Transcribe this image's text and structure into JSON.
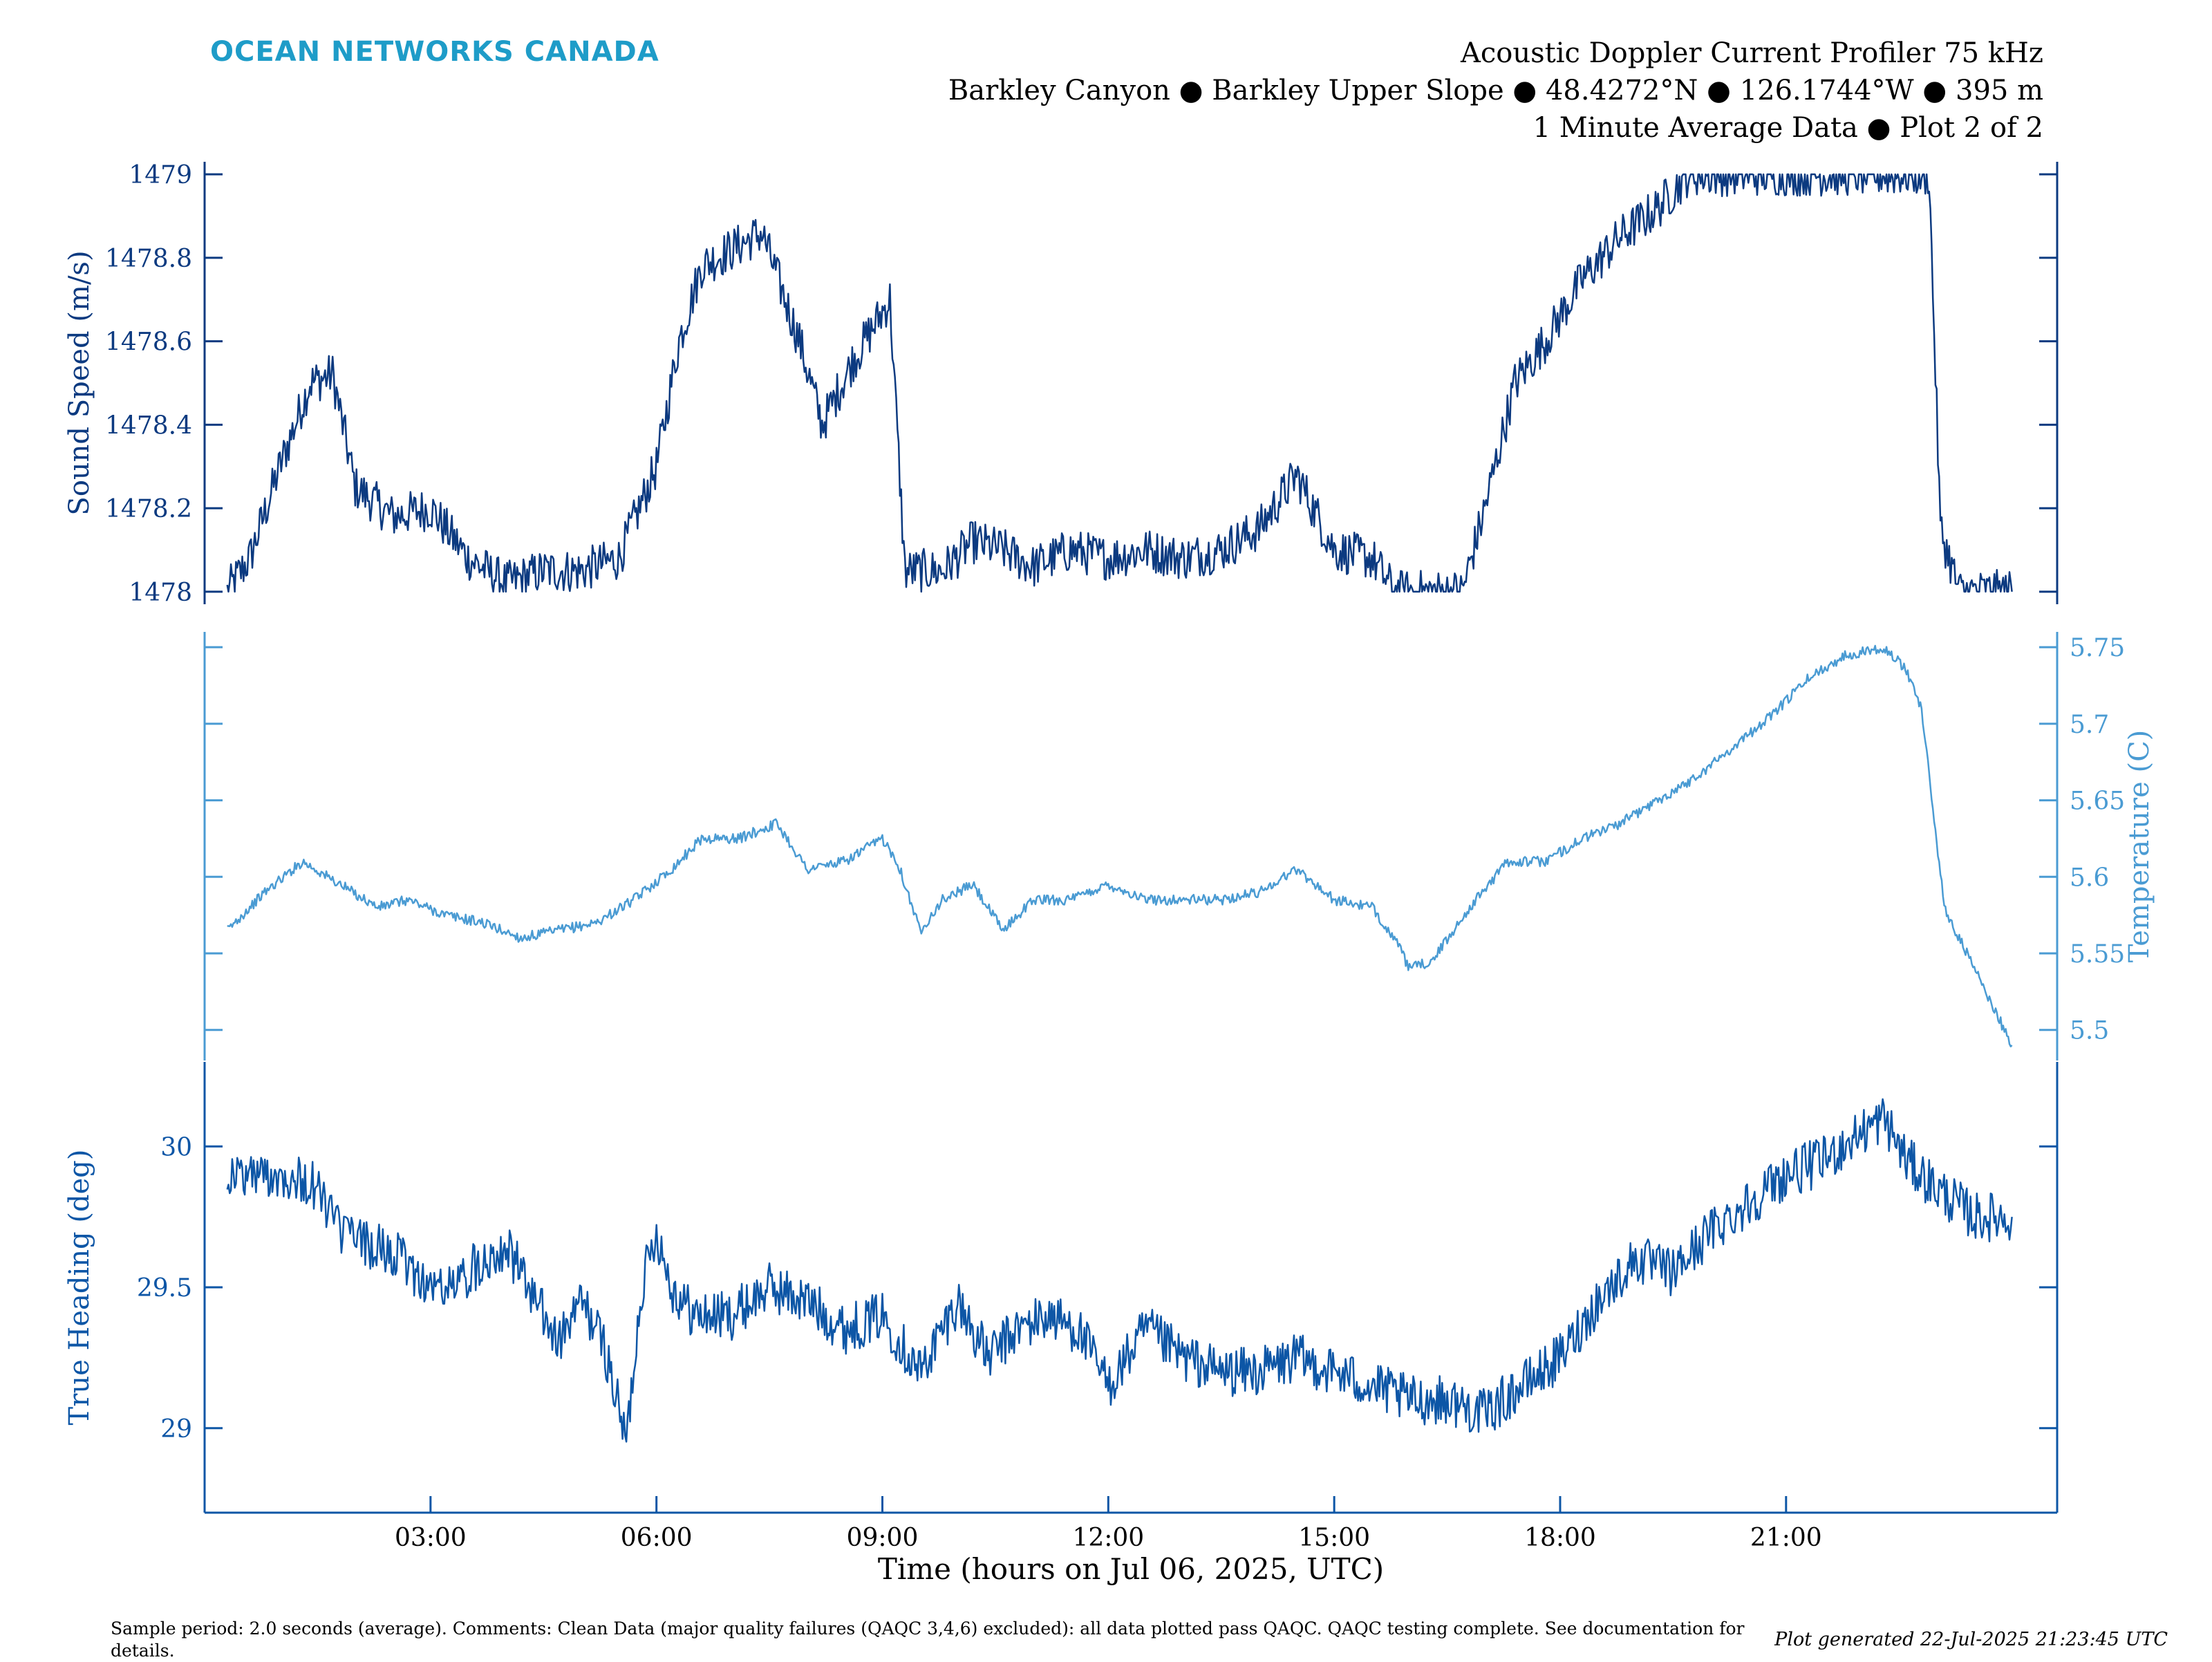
{
  "brand": {
    "name": "OCEAN NETWORKS CANADA",
    "color": "#1e9cc8"
  },
  "title": [
    "Acoustic Doppler Current Profiler 75 kHz",
    "Barkley Canyon ● Barkley Upper Slope ● 48.4272°N ● 126.1744°W ● 395 m",
    "1 Minute Average Data ● Plot 2 of 2"
  ],
  "footer_note": "Sample period: 2.0 seconds (average). Comments: Clean Data (major quality failures (QAQC 3,4,6) excluded): all data plotted pass QAQC. QAQC testing complete. See documentation for details.",
  "generated": "Plot generated 22-Jul-2025 21:23:45 UTC",
  "chart_data": {
    "type": "line",
    "xlabel": "Time (hours on Jul 06, 2025, UTC)",
    "x_unit": "hours",
    "xlim": [
      0,
      24.6
    ],
    "x_ticks": [
      3,
      6,
      9,
      12,
      15,
      18,
      21
    ],
    "x_tick_labels": [
      "03:00",
      "06:00",
      "09:00",
      "12:00",
      "15:00",
      "18:00",
      "21:00"
    ],
    "panels": [
      {
        "name": "sound-speed",
        "ylabel": "Sound Speed (m/s)",
        "axis_side": "left",
        "color": "#0c3a80",
        "ylim": [
          1477.97,
          1479.03
        ],
        "y_ticks": [
          1478,
          1478.2,
          1478.4,
          1478.6,
          1478.8,
          1479
        ],
        "y_tick_labels": [
          "1478",
          "1478.2",
          "1478.4",
          "1478.6",
          "1478.8",
          "1479"
        ],
        "x": [
          0.3,
          0.6,
          1.0,
          1.4,
          1.7,
          2.0,
          2.5,
          3.0,
          3.5,
          4.0,
          4.5,
          5.0,
          5.5,
          6.0,
          6.3,
          6.6,
          7.0,
          7.4,
          7.9,
          8.2,
          8.6,
          9.1,
          9.3,
          9.8,
          10.2,
          10.6,
          11.0,
          11.5,
          12.0,
          12.5,
          13.0,
          13.5,
          14.0,
          14.5,
          15.0,
          15.5,
          15.8,
          16.2,
          16.7,
          17.0,
          17.4,
          17.8,
          18.3,
          18.8,
          19.3,
          19.7,
          20.5,
          21.0,
          22.0,
          22.9,
          23.05,
          23.3,
          24.0
        ],
        "y": [
          1478.0,
          1478.08,
          1478.3,
          1478.5,
          1478.52,
          1478.25,
          1478.18,
          1478.2,
          1478.08,
          1478.02,
          1478.05,
          1478.05,
          1478.08,
          1478.3,
          1478.6,
          1478.78,
          1478.82,
          1478.86,
          1478.6,
          1478.4,
          1478.55,
          1478.7,
          1478.05,
          1478.05,
          1478.12,
          1478.1,
          1478.06,
          1478.1,
          1478.08,
          1478.1,
          1478.08,
          1478.1,
          1478.15,
          1478.28,
          1478.1,
          1478.08,
          1478.0,
          1478.0,
          1478.0,
          1478.2,
          1478.5,
          1478.6,
          1478.75,
          1478.85,
          1478.92,
          1479.0,
          1479.0,
          1479.0,
          1479.0,
          1479.0,
          1478.15,
          1478.0,
          1478.0
        ]
      },
      {
        "name": "temperature",
        "ylabel": "Temperature (C)",
        "axis_side": "right",
        "color": "#4a9bd3",
        "ylim": [
          5.48,
          5.76
        ],
        "y_ticks": [
          5.5,
          5.55,
          5.6,
          5.65,
          5.7,
          5.75
        ],
        "y_tick_labels": [
          "5.5",
          "5.55",
          "5.6",
          "5.65",
          "5.7",
          "5.75"
        ],
        "x": [
          0.3,
          0.8,
          1.3,
          1.8,
          2.3,
          2.7,
          3.2,
          3.7,
          4.2,
          4.7,
          5.2,
          5.7,
          6.2,
          6.6,
          7.1,
          7.6,
          8.0,
          8.5,
          9.0,
          9.2,
          9.5,
          9.8,
          10.2,
          10.6,
          11.0,
          11.5,
          12.0,
          12.5,
          13.0,
          13.5,
          14.0,
          14.5,
          15.0,
          15.5,
          15.8,
          16.0,
          16.3,
          16.8,
          17.3,
          17.8,
          18.3,
          18.8,
          19.3,
          19.8,
          20.3,
          20.8,
          21.3,
          21.8,
          22.3,
          22.6,
          22.8,
          23.1,
          23.5,
          24.0
        ],
        "y": [
          5.565,
          5.59,
          5.61,
          5.595,
          5.58,
          5.585,
          5.575,
          5.57,
          5.56,
          5.565,
          5.57,
          5.585,
          5.605,
          5.625,
          5.625,
          5.635,
          5.605,
          5.61,
          5.625,
          5.61,
          5.565,
          5.585,
          5.595,
          5.565,
          5.585,
          5.585,
          5.595,
          5.585,
          5.585,
          5.585,
          5.59,
          5.605,
          5.585,
          5.58,
          5.56,
          5.54,
          5.545,
          5.58,
          5.61,
          5.61,
          5.625,
          5.635,
          5.65,
          5.665,
          5.685,
          5.705,
          5.73,
          5.745,
          5.75,
          5.735,
          5.71,
          5.58,
          5.54,
          5.49
        ]
      },
      {
        "name": "true-heading",
        "ylabel": "True Heading (deg)",
        "axis_side": "left",
        "color": "#0d56a6",
        "ylim": [
          28.7,
          30.3
        ],
        "y_ticks": [
          29,
          29.5,
          30
        ],
        "y_tick_labels": [
          "29",
          "29.5",
          "30"
        ],
        "x": [
          0.3,
          0.7,
          1.1,
          1.5,
          1.8,
          2.2,
          2.6,
          3.0,
          3.3,
          3.7,
          4.0,
          4.3,
          4.7,
          5.0,
          5.3,
          5.6,
          5.8,
          6.0,
          6.2,
          6.5,
          7.0,
          7.5,
          8.0,
          8.5,
          9.0,
          9.5,
          10.0,
          10.4,
          10.8,
          11.2,
          11.6,
          12.0,
          12.5,
          13.0,
          13.5,
          14.0,
          14.5,
          15.0,
          15.5,
          16.0,
          16.5,
          17.0,
          17.5,
          18.0,
          18.5,
          19.0,
          19.5,
          20.0,
          20.5,
          21.0,
          21.5,
          22.0,
          22.3,
          22.6,
          23.0,
          23.5,
          24.0
        ],
        "y": [
          29.9,
          29.9,
          29.9,
          29.85,
          29.7,
          29.65,
          29.6,
          29.5,
          29.5,
          29.6,
          29.65,
          29.5,
          29.3,
          29.45,
          29.3,
          28.95,
          29.5,
          29.7,
          29.5,
          29.4,
          29.4,
          29.5,
          29.45,
          29.35,
          29.4,
          29.2,
          29.45,
          29.25,
          29.35,
          29.4,
          29.35,
          29.15,
          29.35,
          29.25,
          29.2,
          29.2,
          29.25,
          29.2,
          29.15,
          29.1,
          29.1,
          29.05,
          29.15,
          29.25,
          29.45,
          29.6,
          29.55,
          29.7,
          29.8,
          29.9,
          29.95,
          30.05,
          30.1,
          29.95,
          29.85,
          29.75,
          29.75
        ]
      }
    ]
  }
}
